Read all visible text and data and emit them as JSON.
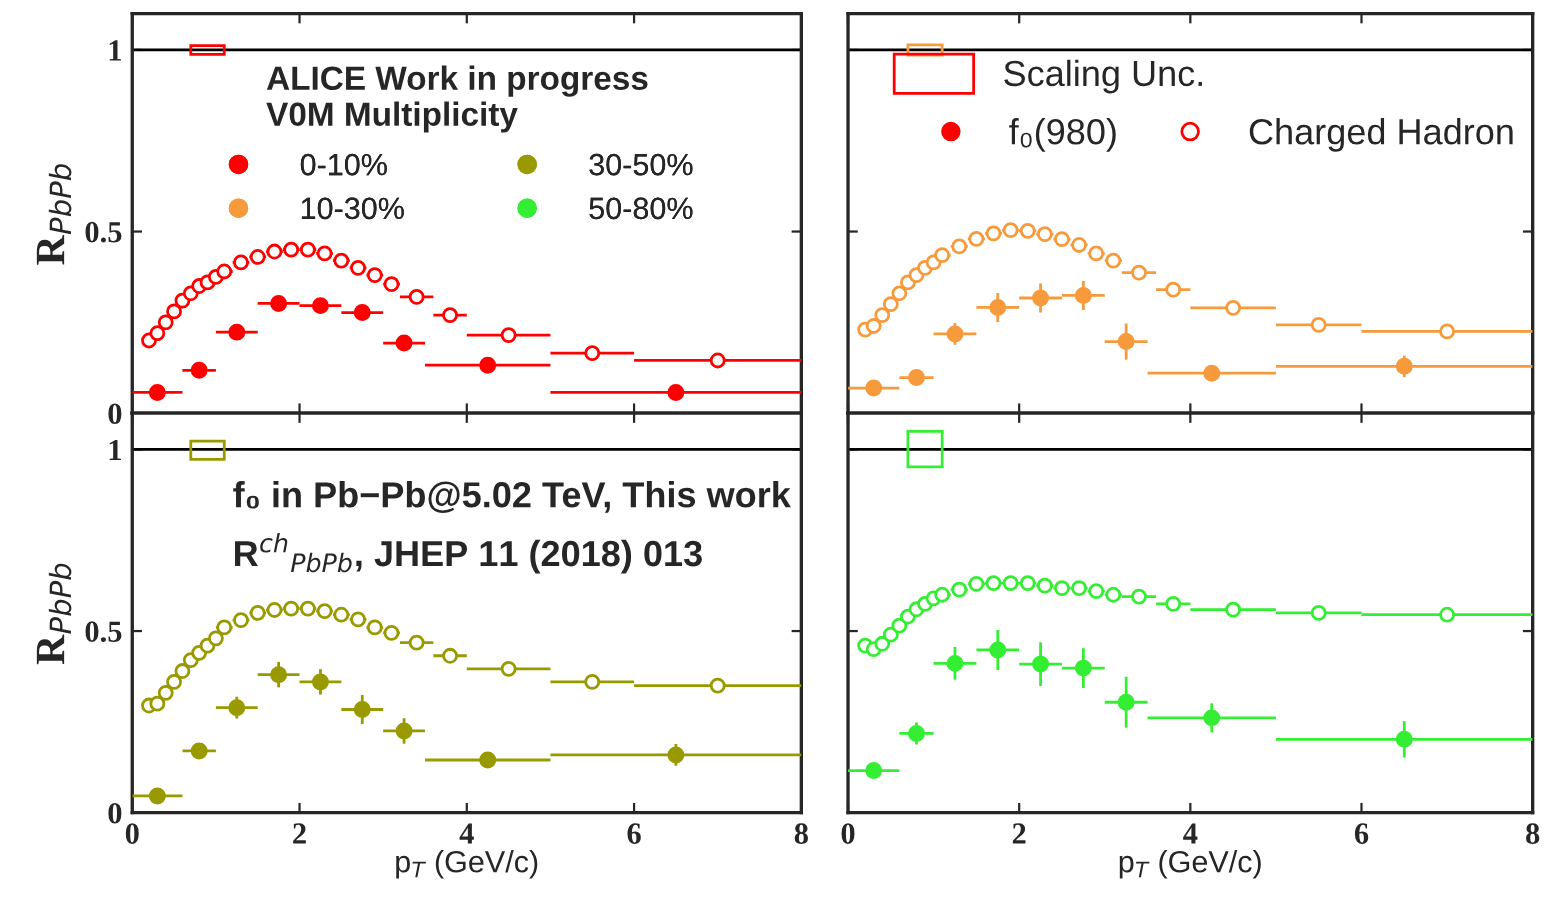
{
  "chart_data": [
    {
      "type": "scatter",
      "ylabel": "R$_{PbPb}$",
      "xlim": [
        0,
        8
      ],
      "xticks": [
        0,
        2,
        4,
        6,
        8
      ],
      "ylim": [
        0,
        1.1
      ],
      "yticks": [
        0,
        0.5,
        1
      ],
      "tick_labels": "y",
      "legend": "top right",
      "annotations": [
        "ALICE Work in progress",
        "V0M Multiplicity",
        "f₀(980)"
      ],
      "ref_lines": [
        {
          "axis": "y",
          "value": 1,
          "color": "#000000"
        }
      ],
      "series": [
        {
          "name": "0-10%",
          "marker": "circle",
          "color": "#ff0000",
          "x": [
            0.3,
            0.8,
            1.25,
            1.75,
            2.25,
            2.75,
            3.25,
            4.25,
            6.5
          ],
          "values": [
            0.057,
            0.118,
            0.223,
            0.302,
            0.296,
            0.277,
            0.193,
            0.132,
            0.057
          ],
          "xerrors": [
            0.3,
            0.2,
            0.25,
            0.25,
            0.25,
            0.25,
            0.25,
            0.75,
            1.5
          ],
          "errors": [
            0.01,
            0.01,
            0.01,
            0.015,
            0.015,
            0.015,
            0.015,
            0.01,
            0.01
          ]
        },
        {
          "name": "Charged Hadron",
          "marker": "circle-open",
          "color": "#ff0000",
          "x": [
            0.2,
            0.3,
            0.4,
            0.5,
            0.6,
            0.7,
            0.8,
            0.9,
            1.0,
            1.1,
            1.3,
            1.5,
            1.7,
            1.9,
            2.1,
            2.3,
            2.5,
            2.7,
            2.9,
            3.1,
            3.4,
            3.8,
            4.5,
            5.5,
            7.0
          ],
          "values": [
            0.2,
            0.22,
            0.25,
            0.28,
            0.31,
            0.33,
            0.35,
            0.36,
            0.375,
            0.39,
            0.415,
            0.43,
            0.445,
            0.45,
            0.45,
            0.44,
            0.42,
            0.4,
            0.38,
            0.355,
            0.32,
            0.27,
            0.215,
            0.165,
            0.145
          ],
          "xerrors": [
            0.05,
            0.05,
            0.05,
            0.05,
            0.05,
            0.05,
            0.05,
            0.05,
            0.05,
            0.1,
            0.1,
            0.1,
            0.1,
            0.1,
            0.1,
            0.1,
            0.1,
            0.1,
            0.1,
            0.1,
            0.2,
            0.2,
            0.5,
            0.5,
            1.0
          ]
        },
        {
          "name": "Scaling Unc.",
          "type": "bar",
          "color": "#ff0000",
          "x": [
            0.9
          ],
          "base": [
            0.988
          ],
          "values": [
            0.024
          ]
        }
      ]
    },
    {
      "type": "scatter",
      "xlim": [
        0,
        8
      ],
      "xticks": [
        0,
        2,
        4,
        6,
        8
      ],
      "ylim": [
        0,
        1.1
      ],
      "yticks": [
        0,
        0.5,
        1
      ],
      "tick_labels": false,
      "legend": "top left",
      "ref_lines": [
        {
          "axis": "y",
          "value": 1,
          "color": "#000000"
        }
      ],
      "series": [
        {
          "name": "10-30%",
          "marker": "circle",
          "color": "#f79a3c",
          "x": [
            0.3,
            0.8,
            1.25,
            1.75,
            2.25,
            2.75,
            3.25,
            4.25,
            6.5
          ],
          "values": [
            0.069,
            0.098,
            0.218,
            0.291,
            0.317,
            0.324,
            0.197,
            0.11,
            0.129
          ],
          "xerrors": [
            0.3,
            0.2,
            0.25,
            0.25,
            0.25,
            0.25,
            0.25,
            0.75,
            1.5
          ],
          "errors": [
            0.015,
            0.015,
            0.03,
            0.04,
            0.04,
            0.04,
            0.05,
            0.015,
            0.03
          ]
        },
        {
          "marker": "circle-open",
          "color": "#f79a3c",
          "x": [
            0.2,
            0.3,
            0.4,
            0.5,
            0.6,
            0.7,
            0.8,
            0.9,
            1.0,
            1.1,
            1.3,
            1.5,
            1.7,
            1.9,
            2.1,
            2.3,
            2.5,
            2.7,
            2.9,
            3.1,
            3.4,
            3.8,
            4.5,
            5.5,
            7.0
          ],
          "values": [
            0.23,
            0.24,
            0.27,
            0.3,
            0.33,
            0.36,
            0.38,
            0.4,
            0.415,
            0.435,
            0.459,
            0.48,
            0.495,
            0.504,
            0.502,
            0.493,
            0.479,
            0.463,
            0.44,
            0.42,
            0.387,
            0.34,
            0.29,
            0.243,
            0.225
          ],
          "xerrors": [
            0.05,
            0.05,
            0.05,
            0.05,
            0.05,
            0.05,
            0.05,
            0.05,
            0.05,
            0.1,
            0.1,
            0.1,
            0.1,
            0.1,
            0.1,
            0.1,
            0.1,
            0.1,
            0.1,
            0.1,
            0.2,
            0.2,
            0.5,
            0.5,
            1.0
          ]
        },
        {
          "type": "bar",
          "color": "#f79a3c",
          "x": [
            0.9
          ],
          "base": [
            0.986
          ],
          "values": [
            0.028
          ]
        }
      ]
    },
    {
      "type": "scatter",
      "xlabel": "p$_{T}$ (GeV/c)",
      "ylabel": "R$_{PbPb}$",
      "xlim": [
        0,
        8
      ],
      "xticks": [
        0,
        2,
        4,
        6,
        8
      ],
      "ylim": [
        0,
        1.1
      ],
      "yticks": [
        0,
        0.5,
        1
      ],
      "annotations": [
        "f₀ in Pb−Pb@5.02 TeV, This work",
        "R$^{ch}$$_{PbPb}$, JHEP 11 (2018) 013"
      ],
      "ref_lines": [
        {
          "axis": "y",
          "value": 1,
          "color": "#000000"
        }
      ],
      "series": [
        {
          "name": "30-50%",
          "marker": "circle",
          "color": "#999900",
          "x": [
            0.3,
            0.8,
            1.25,
            1.75,
            2.25,
            2.75,
            3.25,
            4.25,
            6.5
          ],
          "values": [
            0.046,
            0.17,
            0.289,
            0.38,
            0.36,
            0.284,
            0.225,
            0.145,
            0.159
          ],
          "xerrors": [
            0.3,
            0.2,
            0.25,
            0.25,
            0.25,
            0.25,
            0.25,
            0.75,
            1.5
          ],
          "errors": [
            0.01,
            0.015,
            0.03,
            0.035,
            0.035,
            0.04,
            0.035,
            0.02,
            0.03
          ]
        },
        {
          "marker": "circle-open",
          "color": "#999900",
          "x": [
            0.2,
            0.3,
            0.4,
            0.5,
            0.6,
            0.7,
            0.8,
            0.9,
            1.0,
            1.1,
            1.3,
            1.5,
            1.7,
            1.9,
            2.1,
            2.3,
            2.5,
            2.7,
            2.9,
            3.1,
            3.4,
            3.8,
            4.5,
            5.5,
            7.0
          ],
          "values": [
            0.295,
            0.3,
            0.33,
            0.36,
            0.39,
            0.42,
            0.44,
            0.46,
            0.48,
            0.51,
            0.53,
            0.55,
            0.558,
            0.562,
            0.562,
            0.555,
            0.545,
            0.532,
            0.51,
            0.495,
            0.468,
            0.432,
            0.396,
            0.36,
            0.35
          ],
          "xerrors": [
            0.05,
            0.05,
            0.05,
            0.05,
            0.05,
            0.05,
            0.05,
            0.05,
            0.05,
            0.1,
            0.1,
            0.1,
            0.1,
            0.1,
            0.1,
            0.1,
            0.1,
            0.1,
            0.1,
            0.1,
            0.2,
            0.2,
            0.5,
            0.5,
            1.0
          ]
        },
        {
          "type": "bar",
          "color": "#999900",
          "x": [
            0.9
          ],
          "base": [
            0.973
          ],
          "values": [
            0.05
          ]
        }
      ]
    },
    {
      "type": "scatter",
      "xlabel": "p$_{T}$ (GeV/c)",
      "xlim": [
        0,
        8
      ],
      "xticks": [
        0,
        2,
        4,
        6,
        8
      ],
      "ylim": [
        0,
        1.1
      ],
      "yticks": [
        0,
        0.5,
        1
      ],
      "tick_labels": "x",
      "ref_lines": [
        {
          "axis": "y",
          "value": 1,
          "color": "#000000"
        }
      ],
      "series": [
        {
          "name": "50-80%",
          "marker": "circle",
          "color": "#33ee33",
          "x": [
            0.3,
            0.8,
            1.25,
            1.75,
            2.25,
            2.75,
            3.25,
            4.25,
            6.5
          ],
          "values": [
            0.116,
            0.218,
            0.411,
            0.448,
            0.409,
            0.398,
            0.304,
            0.261,
            0.202
          ],
          "xerrors": [
            0.3,
            0.2,
            0.25,
            0.25,
            0.25,
            0.25,
            0.25,
            0.75,
            1.5
          ],
          "errors": [
            0.02,
            0.03,
            0.045,
            0.055,
            0.06,
            0.055,
            0.07,
            0.04,
            0.05
          ]
        },
        {
          "marker": "circle-open",
          "color": "#33ee33",
          "x": [
            0.2,
            0.3,
            0.4,
            0.5,
            0.6,
            0.7,
            0.8,
            0.9,
            1.0,
            1.1,
            1.3,
            1.5,
            1.7,
            1.9,
            2.1,
            2.3,
            2.5,
            2.7,
            2.9,
            3.1,
            3.4,
            3.8,
            4.5,
            5.5,
            7.0
          ],
          "values": [
            0.46,
            0.45,
            0.465,
            0.49,
            0.515,
            0.54,
            0.56,
            0.575,
            0.59,
            0.6,
            0.614,
            0.63,
            0.632,
            0.632,
            0.632,
            0.625,
            0.618,
            0.618,
            0.61,
            0.6,
            0.595,
            0.575,
            0.559,
            0.55,
            0.545
          ],
          "xerrors": [
            0.05,
            0.05,
            0.05,
            0.05,
            0.05,
            0.05,
            0.05,
            0.05,
            0.05,
            0.1,
            0.1,
            0.1,
            0.1,
            0.1,
            0.1,
            0.1,
            0.1,
            0.1,
            0.1,
            0.1,
            0.2,
            0.2,
            0.5,
            0.5,
            1.0
          ]
        },
        {
          "type": "bar",
          "color": "#33ee33",
          "x": [
            0.9
          ],
          "base": [
            0.952
          ],
          "values": [
            0.098
          ]
        }
      ]
    }
  ]
}
